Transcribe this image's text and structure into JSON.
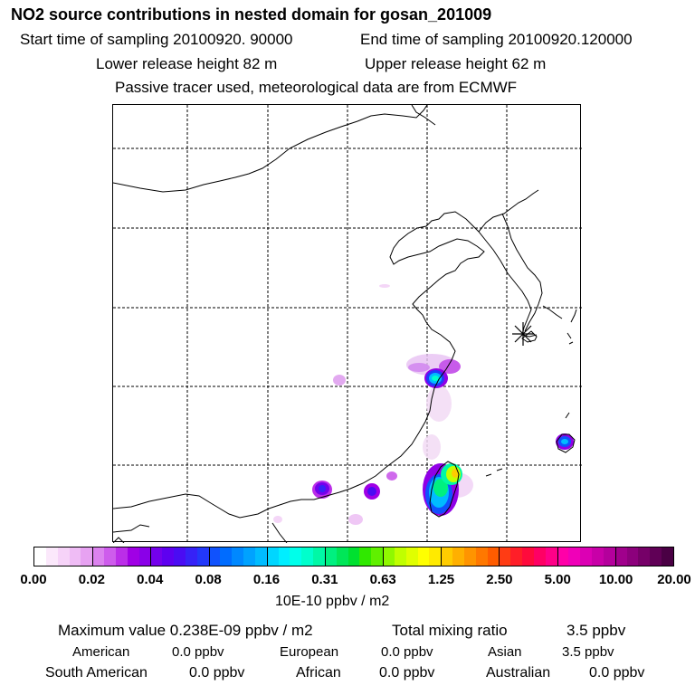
{
  "header": {
    "title": "NO2 source contributions in nested domain for gosan_201009",
    "start_label": "Start time of sampling 20100920. 90000",
    "end_label": "End time of sampling 20100920.120000",
    "lower_height": "Lower release height   82 m",
    "upper_height": "Upper release height   62 m",
    "tracer_note": "Passive tracer used, meteorological data are from ECMWF"
  },
  "colorbar": {
    "tick_labels": [
      "0.00",
      "0.02",
      "0.04",
      "0.08",
      "0.16",
      "0.31",
      "0.63",
      "1.25",
      "2.50",
      "5.00",
      "10.00",
      "20.00"
    ],
    "units": "10E-10 ppbv / m2",
    "colors": [
      "#ffffff",
      "#fbe8fb",
      "#f6d3f8",
      "#efbcf5",
      "#e7a2f2",
      "#dc82ef",
      "#ce5cec",
      "#bb2ee8",
      "#a000e5",
      "#8a00e8",
      "#7400ec",
      "#5e00f0",
      "#4a0cf3",
      "#3622f7",
      "#2238fa",
      "#1052fd",
      "#006cff",
      "#0088ff",
      "#00a2ff",
      "#00bcff",
      "#00d6ff",
      "#00eeff",
      "#00ffea",
      "#00ffcc",
      "#00f8a6",
      "#00f080",
      "#00e658",
      "#00e030",
      "#30e800",
      "#60f000",
      "#90f800",
      "#c0ff00",
      "#e0ff00",
      "#ffff00",
      "#ffea00",
      "#ffcc00",
      "#ffb000",
      "#ff9400",
      "#ff7800",
      "#ff5c00",
      "#ff3c14",
      "#ff1e28",
      "#ff0a3c",
      "#ff0064",
      "#ff0088",
      "#ff00a8",
      "#f000b8",
      "#dc00b4",
      "#c800a8",
      "#b4009c",
      "#a0008c",
      "#8c007c",
      "#760068",
      "#600056",
      "#4a0044"
    ]
  },
  "map": {
    "gosan_marker": "gosan-site"
  },
  "stats": {
    "max_line": "Maximum value  0.238E-09 ppbv / m2",
    "total_label": "Total mixing ratio",
    "total_value": "3.5 ppbv",
    "american_label": "American",
    "american_value": "0.0 ppbv",
    "european_label": "European",
    "european_value": "0.0 ppbv",
    "asian_label": "Asian",
    "asian_value": "3.5 ppbv",
    "south_american_label": "South American",
    "south_american_value": "0.0 ppbv",
    "african_label": "African",
    "african_value": "0.0 ppbv",
    "australian_label": "Australian",
    "australian_value": "0.0 ppbv"
  }
}
